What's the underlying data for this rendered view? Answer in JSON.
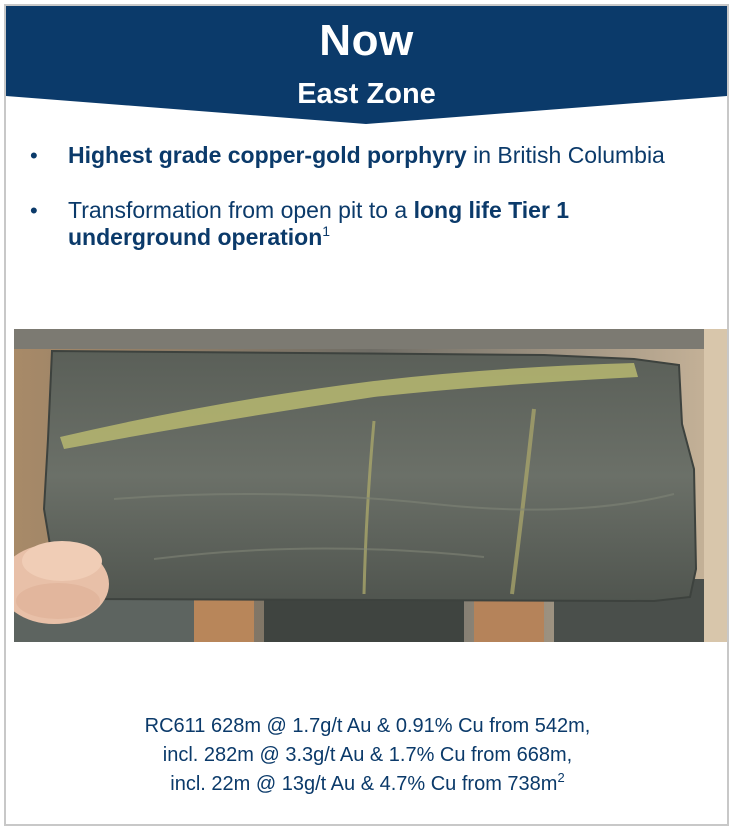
{
  "header": {
    "title": "Now",
    "subtitle": "East Zone",
    "band_color": "#0b3a6a"
  },
  "bullets": [
    {
      "bold": "Highest grade copper-gold porphyry",
      "text": " in British Columbia"
    },
    {
      "text": "Transformation from open pit to a ",
      "bold": "long life Tier 1 underground operation",
      "footnote": "1"
    }
  ],
  "photo": {
    "subject": "drill-core-sample"
  },
  "caption": {
    "line1": "RC611 628m @ 1.7g/t Au & 0.91% Cu from 542m,",
    "line2": "incl. 282m @ 3.3g/t Au & 1.7% Cu from 668m,",
    "line3": "incl. 22m @ 13g/t Au & 4.7% Cu from 738m",
    "footnote": "2"
  }
}
